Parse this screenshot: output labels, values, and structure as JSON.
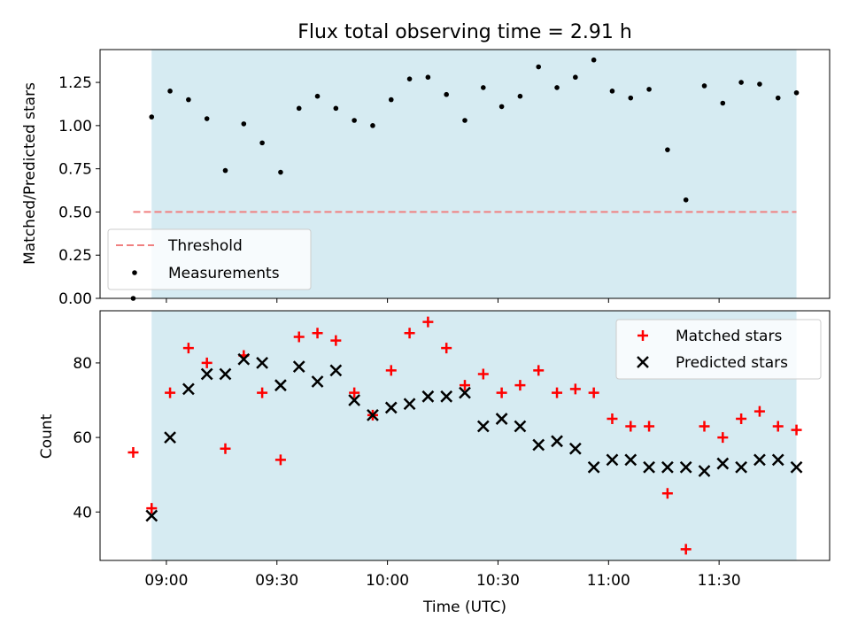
{
  "chart_data": [
    {
      "type": "scatter",
      "title": "Flux total observing time = 2.91 h",
      "xlabel": "",
      "ylabel": "Matched/Predicted stars",
      "ylim": [
        0,
        1.44
      ],
      "yticks": [
        0.0,
        0.25,
        0.5,
        0.75,
        1.0,
        1.25
      ],
      "ytick_labels": [
        "0.00",
        "0.25",
        "0.50",
        "0.75",
        "1.00",
        "1.25"
      ],
      "x_unit": "minutes since 09:00 UTC",
      "xlim": [
        -18,
        180
      ],
      "shaded_span": [
        -4,
        171
      ],
      "threshold": {
        "name": "Threshold",
        "value": 0.5,
        "x_range": [
          -9,
          171
        ],
        "color": "#f08080"
      },
      "legend": {
        "position": "lower-left",
        "entries": [
          "Threshold",
          "Measurements"
        ]
      },
      "series": [
        {
          "name": "Measurements",
          "color": "#000000",
          "x": [
            -9,
            -4,
            1,
            6,
            11,
            16,
            21,
            26,
            31,
            36,
            41,
            46,
            51,
            56,
            61,
            66,
            71,
            76,
            81,
            86,
            91,
            96,
            101,
            106,
            111,
            116,
            121,
            126,
            131,
            136,
            141,
            146,
            151,
            156,
            161,
            166,
            171
          ],
          "y": [
            0.0,
            1.05,
            1.2,
            1.15,
            1.04,
            0.74,
            1.01,
            0.9,
            0.73,
            1.1,
            1.17,
            1.1,
            1.03,
            1.0,
            1.15,
            1.27,
            1.28,
            1.18,
            1.03,
            1.22,
            1.11,
            1.17,
            1.34,
            1.22,
            1.28,
            1.38,
            1.2,
            1.16,
            1.21,
            0.86,
            0.57,
            1.23,
            1.13,
            1.25,
            1.24,
            1.16,
            1.19
          ]
        }
      ]
    },
    {
      "type": "scatter",
      "title": "",
      "xlabel": "Time (UTC)",
      "ylabel": "Count",
      "ylim": [
        27,
        94
      ],
      "yticks": [
        40,
        60,
        80
      ],
      "ytick_labels": [
        "40",
        "60",
        "80"
      ],
      "x_unit": "minutes since 09:00 UTC",
      "xlim": [
        -18,
        180
      ],
      "xticks": [
        0,
        30,
        60,
        90,
        120,
        150
      ],
      "xtick_labels": [
        "09:00",
        "09:30",
        "10:00",
        "10:30",
        "11:00",
        "11:30"
      ],
      "shaded_span": [
        -4,
        171
      ],
      "legend": {
        "position": "top-right",
        "entries": [
          "Matched stars",
          "Predicted stars"
        ]
      },
      "series": [
        {
          "name": "Matched stars",
          "marker": "+",
          "color": "#ff0000",
          "x": [
            -9,
            -4,
            1,
            6,
            11,
            16,
            21,
            26,
            31,
            36,
            41,
            46,
            51,
            56,
            61,
            66,
            71,
            76,
            81,
            86,
            91,
            96,
            101,
            106,
            111,
            116,
            121,
            126,
            131,
            136,
            141,
            146,
            151,
            156,
            161,
            166,
            171
          ],
          "y": [
            56,
            41,
            72,
            84,
            80,
            57,
            82,
            72,
            54,
            87,
            88,
            86,
            72,
            66,
            78,
            88,
            91,
            84,
            74,
            77,
            72,
            74,
            78,
            72,
            73,
            72,
            65,
            63,
            63,
            45,
            30,
            63,
            60,
            65,
            67,
            63,
            62
          ]
        },
        {
          "name": "Predicted stars",
          "marker": "x",
          "color": "#000000",
          "x": [
            -4,
            1,
            6,
            11,
            16,
            21,
            26,
            31,
            36,
            41,
            46,
            51,
            56,
            61,
            66,
            71,
            76,
            81,
            86,
            91,
            96,
            101,
            106,
            111,
            116,
            121,
            126,
            131,
            136,
            141,
            146,
            151,
            156,
            161,
            166,
            171
          ],
          "y": [
            39,
            60,
            73,
            77,
            77,
            81,
            80,
            74,
            79,
            75,
            78,
            70,
            66,
            68,
            69,
            71,
            71,
            72,
            63,
            65,
            63,
            58,
            59,
            57,
            52,
            54,
            54,
            52,
            52,
            52,
            51,
            53,
            52,
            54,
            54,
            52
          ]
        }
      ]
    }
  ]
}
